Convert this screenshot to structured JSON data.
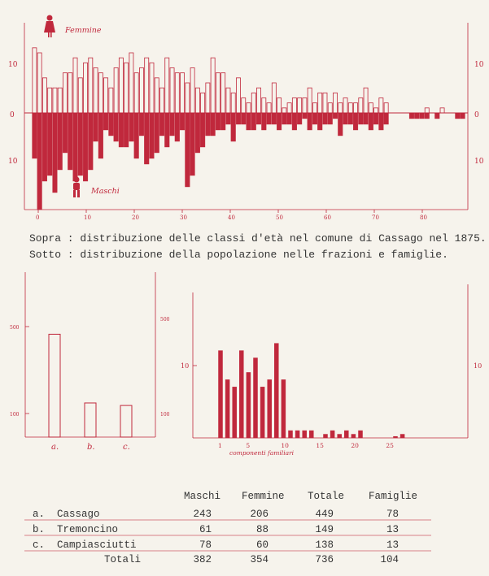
{
  "colors": {
    "ink": "#c0283c",
    "text": "#333333",
    "paper": "#f6f3ec"
  },
  "chart_data": [
    {
      "type": "bar",
      "title": "",
      "xlabel": "",
      "ylabel": "",
      "x_ticks": [
        "0",
        "10",
        "20",
        "30",
        "40",
        "50",
        "60",
        "70",
        "80"
      ],
      "y_ticks_top": [
        "10"
      ],
      "y_ticks_bottom": [
        "10"
      ],
      "zero_label": "0",
      "xlim": [
        0,
        87
      ],
      "ylim": [
        -17,
        18
      ],
      "series": [
        {
          "name": "Femmine",
          "style": "outline-above-axis",
          "values": [
            13,
            12,
            7,
            5,
            5,
            5,
            8,
            8,
            11,
            7,
            10,
            11,
            9,
            8,
            7,
            5,
            9,
            11,
            10,
            12,
            8,
            9,
            11,
            10,
            7,
            5,
            11,
            9,
            8,
            8,
            6,
            9,
            5,
            4,
            6,
            11,
            8,
            8,
            5,
            4,
            7,
            3,
            2,
            4,
            5,
            3,
            2,
            6,
            3,
            1,
            2,
            3,
            3,
            3,
            5,
            2,
            4,
            4,
            2,
            4,
            2,
            3,
            2,
            2,
            3,
            5,
            2,
            1,
            3,
            2,
            0,
            0,
            0,
            0,
            0,
            0,
            0,
            1,
            0,
            0,
            1,
            0,
            0,
            0,
            0,
            0
          ]
        },
        {
          "name": "Maschi",
          "style": "filled-below-axis",
          "values": [
            8,
            17,
            12,
            11,
            14,
            10,
            7,
            10,
            12,
            11,
            12,
            10,
            5,
            8,
            3,
            4,
            5,
            6,
            6,
            5,
            8,
            4,
            9,
            8,
            7,
            4,
            6,
            4,
            5,
            3,
            13,
            11,
            7,
            6,
            4,
            4,
            3,
            3,
            2,
            5,
            2,
            2,
            3,
            3,
            2,
            3,
            2,
            2,
            3,
            2,
            2,
            3,
            2,
            1,
            3,
            2,
            3,
            2,
            2,
            1,
            4,
            2,
            2,
            3,
            2,
            2,
            3,
            2,
            3,
            2,
            0,
            0,
            0,
            0,
            1,
            1,
            1,
            1,
            0,
            1,
            0,
            0,
            0,
            1,
            1,
            0
          ]
        }
      ],
      "legend": {
        "top": "Femmine",
        "bottom": "Maschi"
      }
    },
    {
      "type": "bar",
      "title": "",
      "categories": [
        "a.",
        "b.",
        "c."
      ],
      "values": [
        449,
        149,
        138
      ],
      "y_ticks": [
        "100",
        "500"
      ],
      "ylim": [
        0,
        720
      ]
    },
    {
      "type": "bar",
      "title": "",
      "xlabel": "componenti familiari",
      "x_ticks": [
        "1",
        "5",
        "10",
        "15",
        "20",
        "25"
      ],
      "y_ticks": [
        "10"
      ],
      "x": [
        1,
        2,
        3,
        4,
        5,
        6,
        7,
        8,
        9,
        10,
        11,
        12,
        13,
        14,
        15,
        16,
        17,
        18,
        19,
        20,
        21,
        22,
        23,
        24,
        25,
        26,
        27,
        28
      ],
      "values": [
        12,
        8,
        7,
        12,
        9,
        11,
        7,
        8,
        13,
        8,
        1,
        1,
        1,
        1,
        0,
        0.5,
        1,
        0.5,
        1,
        0.5,
        1,
        0,
        0,
        0,
        0,
        0.2,
        0.5,
        0
      ],
      "ylim": [
        0,
        20
      ]
    }
  ],
  "captions": {
    "line1": "Sopra : distribuzione delle classi d'età nel comune di Cassago nel 1875.",
    "line2": "Sotto : distribuzione della popolazione nelle frazioni e famiglie."
  },
  "table": {
    "headers": [
      "Maschi",
      "Femmine",
      "Totale",
      "Famiglie"
    ],
    "rows": [
      {
        "letter": "a.",
        "name": "Cassago",
        "maschi": "243",
        "femmine": "206",
        "totale": "449",
        "famiglie": "78"
      },
      {
        "letter": "b.",
        "name": "Tremoncino",
        "maschi": "61",
        "femmine": "88",
        "totale": "149",
        "famiglie": "13"
      },
      {
        "letter": "c.",
        "name": "Campiasciutti",
        "maschi": "78",
        "femmine": "60",
        "totale": "138",
        "famiglie": "13"
      }
    ],
    "total": {
      "label": "Totali",
      "maschi": "382",
      "femmine": "354",
      "totale": "736",
      "famiglie": "104"
    }
  }
}
